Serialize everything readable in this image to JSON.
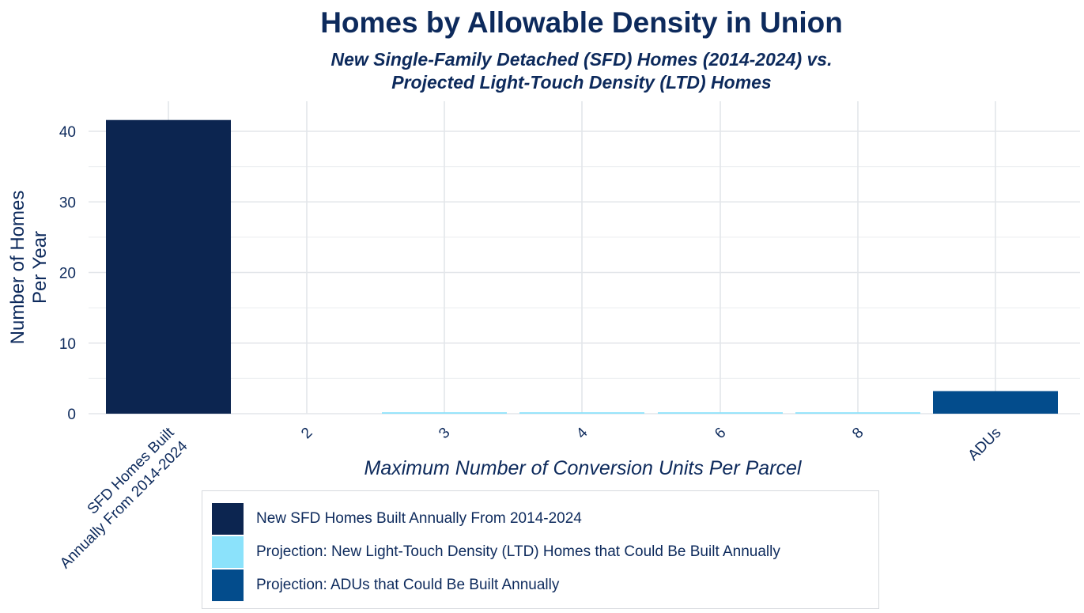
{
  "chart_data": {
    "type": "bar",
    "title": "Homes by Allowable Density in Union",
    "subtitle": [
      "New Single-Family Detached (SFD) Homes (2014-2024) vs.",
      "Projected Light-Touch Density (LTD) Homes"
    ],
    "xlabel": "Maximum Number of Conversion Units Per Parcel",
    "ylabel": [
      "Number of Homes",
      "Per Year"
    ],
    "ylim": [
      0,
      42
    ],
    "yticks": [
      0,
      10,
      20,
      30,
      40
    ],
    "grid": true,
    "legend_placement": "bottom",
    "categories": [
      [
        "SFD Homes Built",
        "Annually From 2014-2024"
      ],
      [
        "2"
      ],
      [
        "3"
      ],
      [
        "4"
      ],
      [
        "6"
      ],
      [
        "8"
      ],
      [
        "ADUs"
      ]
    ],
    "bars": [
      {
        "category_index": 0,
        "value": 41.6,
        "series": 0
      },
      {
        "category_index": 1,
        "value": 0,
        "series": 1
      },
      {
        "category_index": 2,
        "value": 0.2,
        "series": 1
      },
      {
        "category_index": 3,
        "value": 0.2,
        "series": 1
      },
      {
        "category_index": 4,
        "value": 0.2,
        "series": 1
      },
      {
        "category_index": 5,
        "value": 0.2,
        "series": 1
      },
      {
        "category_index": 6,
        "value": 3.2,
        "series": 2
      }
    ],
    "series": [
      {
        "name": "New SFD Homes Built Annually From 2014-2024",
        "color": "#0c2550"
      },
      {
        "name": "Projection: New Light-Touch Density (LTD) Homes that Could Be Built Annually",
        "color": "#8be2fb"
      },
      {
        "name": "Projection: ADUs that Could Be Built Annually",
        "color": "#034c8c"
      }
    ]
  }
}
